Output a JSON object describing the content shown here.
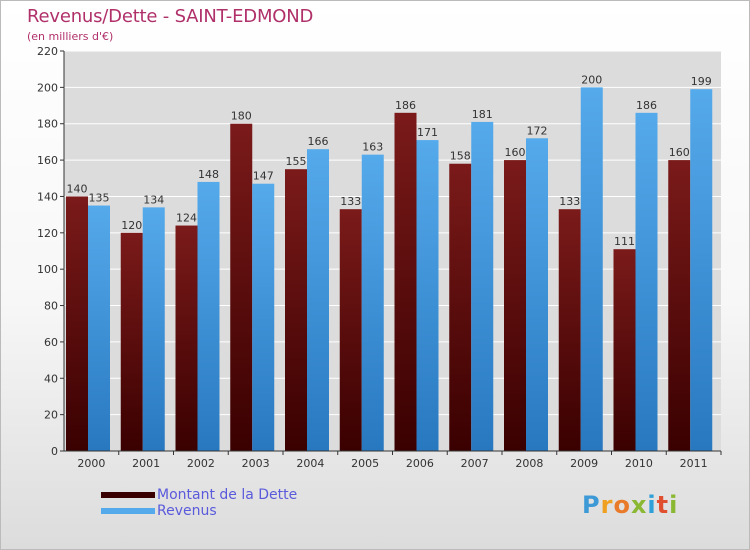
{
  "title": "Revenus/Dette - SAINT-EDMOND",
  "subtitle": "(en milliers d'€)",
  "colors": {
    "debt": "#7b1a1a",
    "debt_dark": "#3a0000",
    "revenue": "#55aaeb",
    "revenue_dark": "#2878c0",
    "grid": "#ffffff",
    "axis": "#333333"
  },
  "chart_data": {
    "type": "bar",
    "categories": [
      "2000",
      "2001",
      "2002",
      "2003",
      "2004",
      "2005",
      "2006",
      "2007",
      "2008",
      "2009",
      "2010",
      "2011"
    ],
    "series": [
      {
        "name": "Montant de la Dette",
        "values": [
          140,
          120,
          124,
          180,
          155,
          133,
          186,
          158,
          160,
          133,
          111,
          160
        ]
      },
      {
        "name": "Revenus",
        "values": [
          135,
          134,
          148,
          147,
          166,
          163,
          171,
          181,
          172,
          200,
          186,
          199
        ]
      }
    ],
    "ylim": [
      0,
      220
    ],
    "yticks": [
      0,
      20,
      40,
      60,
      80,
      100,
      120,
      140,
      160,
      180,
      200,
      220
    ],
    "grid": true,
    "legend_position": "bottom-left"
  },
  "logo": {
    "letters": [
      "P",
      "r",
      "o",
      "x",
      "i",
      "t",
      "i"
    ],
    "colors": [
      "#3d9ad6",
      "#f0a020",
      "#e87a2a",
      "#8ab832",
      "#2fa0d8",
      "#e05030",
      "#8ab832"
    ]
  }
}
